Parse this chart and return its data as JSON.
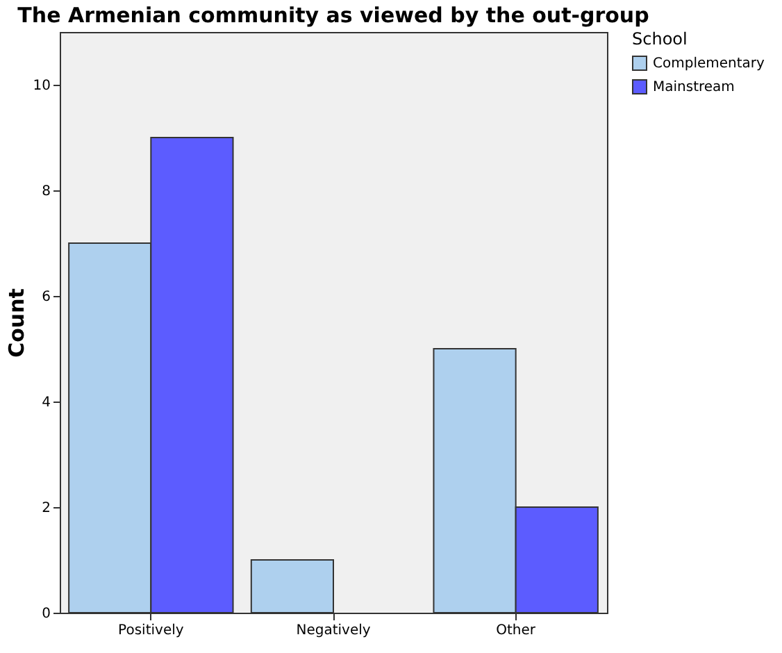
{
  "chart_data": {
    "type": "bar",
    "title": "The Armenian community as viewed by the out-group",
    "ylabel": "Count",
    "legend_title": "School",
    "categories": [
      "Positively",
      "Negatively",
      "Other"
    ],
    "series": [
      {
        "name": "Complementary",
        "color": "#aed0ee",
        "values": [
          7,
          1,
          5
        ]
      },
      {
        "name": "Mainstream",
        "color": "#5c5cff",
        "values": [
          9,
          null,
          2
        ]
      }
    ],
    "ylim": [
      0,
      11
    ],
    "yticks": [
      0,
      2,
      4,
      6,
      8,
      10
    ],
    "grid": false,
    "legend": "right"
  }
}
